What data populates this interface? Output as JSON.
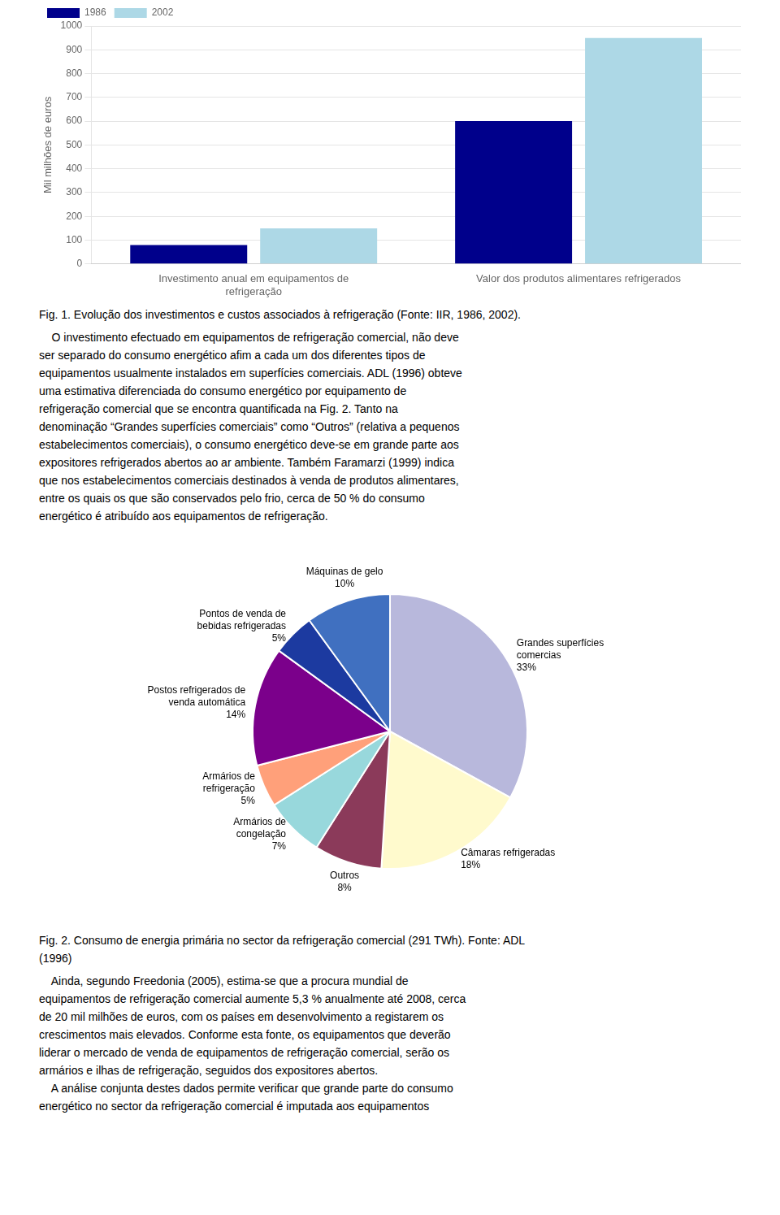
{
  "chart_data": [
    {
      "type": "bar",
      "categories": [
        "Investimento anual em equipamentos de\nrefrigeração",
        "Valor dos produtos alimentares refrigerados"
      ],
      "series": [
        {
          "name": "1986",
          "color": "#00008B",
          "values": [
            80,
            600
          ]
        },
        {
          "name": "2002",
          "color": "#ADD8E6",
          "values": [
            150,
            950
          ]
        }
      ],
      "ylabel": "Mil milhões de euros",
      "ylim": [
        0,
        1000
      ],
      "yticks": [
        0,
        100,
        200,
        300,
        400,
        500,
        600,
        700,
        800,
        900,
        1000
      ],
      "grid": true,
      "legend": "upper left",
      "annotations": [
        "Fig. 1. Evolução dos investimentos e custos associados à refrigeração (Fonte: IIR, 1986, 2002).",
        "    O investimento efectuado em equipamentos de refrigeração comercial, não deve",
        "ser separado do consumo energético afim a cada um dos diferentes tipos de",
        "equipamentos usualmente instalados em superfícies comerciais. ADL (1996) obteve",
        "uma estimativa diferenciada do consumo energético por equipamento de",
        "refrigeração comercial que se encontra quantificada na Fig. 2. Tanto na",
        "denominação “Grandes superfícies comerciais” como “Outros” (relativa a pequenos",
        "estabelecimentos comerciais), o consumo energético deve-se em grande parte aos",
        "expositores refrigerados abertos ao ar ambiente. Também Faramarzi (1999) indica",
        "que nos estabelecimentos comerciais destinados à venda de produtos alimentares,",
        "entre os quais os que são conservados pelo frio, cerca de 50 % do consumo",
        "energético é atribuído aos equipamentos de refrigeração."
      ]
    },
    {
      "type": "pie",
      "categories": [
        "Grandes superfícies\ncomercias",
        "Câmaras refrigeradas",
        "Outros",
        "Armários de\ncongelação",
        "Armários de\nrefrigeração",
        "Postos refrigerados de\nvenda automática",
        "Pontos de venda de\nbebidas refrigeradas",
        "Máquinas de gelo"
      ],
      "values": [
        33,
        18,
        8,
        7,
        5,
        14,
        5,
        10
      ],
      "value_labels": [
        "33%",
        "18%",
        "8%",
        "7%",
        "5%",
        "14%",
        "5%",
        "10%"
      ],
      "colors": [
        "#B8B8DC",
        "#FFFACD",
        "#8B3A5A",
        "#98D8DC",
        "#FFA07A",
        "#7B008B",
        "#1C3AA0",
        "#4070C0"
      ],
      "data_labels": true,
      "annotations": [
        "Fig. 2. Consumo de energia primária no sector da refrigeração comercial (291 TWh). Fonte: ADL",
        "(1996)",
        "    Ainda, segundo Freedonia (2005), estima-se que a procura mundial de",
        "equipamentos de refrigeração comercial aumente 5,3 % anualmente até 2008, cerca",
        "de 20 mil milhões de euros, com os países em desenvolvimento a registarem os",
        "crescimentos mais elevados. Conforme esta fonte, os equipamentos que deverão",
        "liderar o mercado de venda de equipamentos de refrigeração comercial, serão os",
        "armários e ilhas de refrigeração, seguidos dos expositores abertos.",
        "    A análise conjunta destes dados permite verificar que grande parte do consumo",
        "energético no sector da refrigeração comercial é imputada aos equipamentos"
      ]
    }
  ]
}
